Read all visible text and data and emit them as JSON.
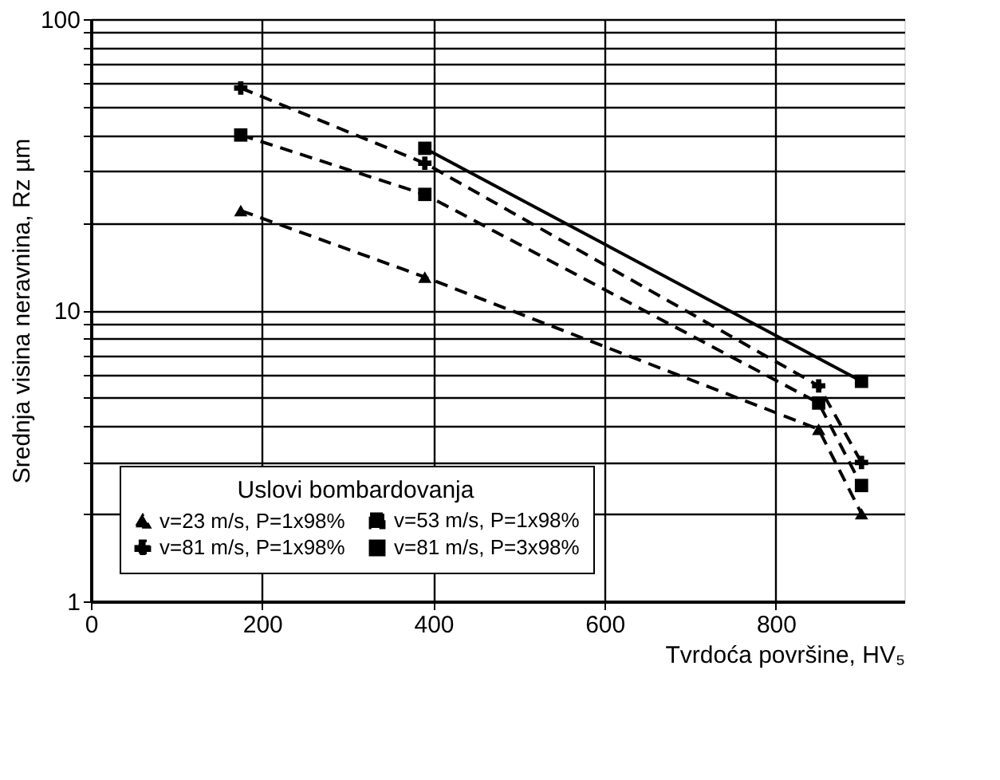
{
  "chart_data": {
    "type": "line",
    "xlabel": "Tvrdoća površine, HV₅",
    "ylabel": "Srednja visina neravnina, Rz  µm",
    "legend_title": "Uslovi bombardovanja",
    "xlim": [
      0,
      950
    ],
    "xticks": [
      0,
      200,
      400,
      600,
      800
    ],
    "ylim": [
      1,
      100
    ],
    "log": true,
    "yticks": [
      1,
      {
        "value": 2,
        "label": null
      },
      {
        "value": 3,
        "label": null
      },
      {
        "value": 4,
        "label": null
      },
      {
        "value": 5,
        "label": null
      },
      {
        "value": 6,
        "label": null
      },
      {
        "value": 7,
        "label": null
      },
      {
        "value": 8,
        "label": null
      },
      {
        "value": 9,
        "label": null
      },
      10,
      {
        "value": 20,
        "label": null
      },
      {
        "value": 30,
        "label": null
      },
      {
        "value": 40,
        "label": null
      },
      {
        "value": 50,
        "label": null
      },
      {
        "value": 60,
        "label": null
      },
      {
        "value": 70,
        "label": null
      },
      {
        "value": 80,
        "label": null
      },
      {
        "value": 90,
        "label": null
      },
      100
    ],
    "grid": true,
    "legend": "bottom left",
    "series": [
      {
        "name": "v=23 m/s, P=1x98%",
        "color": "#000000",
        "marker": "triangle",
        "line_style": "dashed",
        "x": [
          175,
          390,
          850,
          900
        ],
        "values": [
          22,
          13,
          3.9,
          2.0
        ]
      },
      {
        "name": "v=53 m/s, P=1x98%",
        "color": "#000000",
        "marker": "square",
        "line_style": "dashed",
        "x": [
          175,
          390,
          850,
          900
        ],
        "values": [
          40,
          25,
          4.8,
          2.5
        ]
      },
      {
        "name": "v=81 m/s, P=1x98%",
        "color": "#000000",
        "marker": "cross",
        "line_style": "dashed",
        "x": [
          175,
          390,
          850,
          900
        ],
        "values": [
          58,
          32,
          5.5,
          3.0
        ]
      },
      {
        "name": "v=81 m/s, P=3x98%",
        "color": "#000000",
        "marker": "square",
        "line_style": "solid",
        "x": [
          390,
          900
        ],
        "values": [
          36,
          5.7
        ]
      }
    ]
  }
}
